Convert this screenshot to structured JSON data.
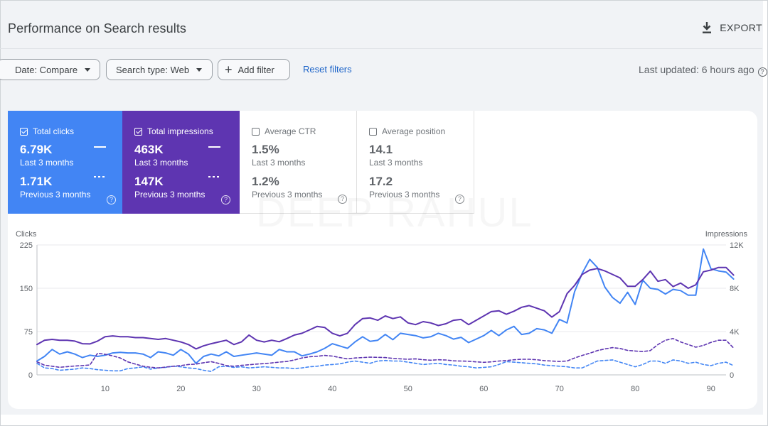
{
  "header": {
    "title": "Performance on Search results",
    "export_label": "EXPORT"
  },
  "filters": {
    "date": "Date: Compare",
    "search_type": "Search type: Web",
    "add_filter": "Add filter",
    "reset": "Reset filters",
    "last_updated": "Last updated: 6 hours ago"
  },
  "metrics": [
    {
      "label": "Total clicks",
      "checked": true,
      "value": "6.79K",
      "period": "Last 3 months",
      "prev_value": "1.71K",
      "prev_period": "Previous 3 months",
      "color": "#4285f4"
    },
    {
      "label": "Total impressions",
      "checked": true,
      "value": "463K",
      "period": "Last 3 months",
      "prev_value": "147K",
      "prev_period": "Previous 3 months",
      "color": "#5e35b1"
    },
    {
      "label": "Average CTR",
      "checked": false,
      "value": "1.5%",
      "period": "Last 3 months",
      "prev_value": "1.2%",
      "prev_period": "Previous 3 months",
      "color": "#70757a"
    },
    {
      "label": "Average position",
      "checked": false,
      "value": "14.1",
      "period": "Last 3 months",
      "prev_value": "17.2",
      "prev_period": "Previous 3 months",
      "color": "#70757a"
    }
  ],
  "watermark": "DEEP RAHUL",
  "chart_data": {
    "type": "line",
    "left_axis": {
      "label": "Clicks",
      "ticks": [
        "0",
        "75",
        "150",
        "225"
      ],
      "range": [
        0,
        225
      ]
    },
    "right_axis": {
      "label": "Impressions",
      "ticks": [
        "0",
        "4K",
        "8K",
        "12K"
      ],
      "range": [
        0,
        12000
      ]
    },
    "x_ticks": [
      10,
      20,
      30,
      40,
      50,
      60,
      70,
      80,
      90
    ],
    "x_range": [
      1,
      92
    ],
    "grid": true,
    "series": [
      {
        "metric": "Total clicks",
        "period": "Last 3 months",
        "axis": "left",
        "color": "#4285f4",
        "style": "solid",
        "values": [
          24,
          32,
          44,
          36,
          40,
          36,
          30,
          34,
          32,
          34,
          38,
          39,
          38,
          38,
          36,
          30,
          40,
          38,
          34,
          44,
          36,
          20,
          32,
          36,
          33,
          40,
          32,
          34,
          36,
          38,
          36,
          34,
          44,
          40,
          40,
          33,
          36,
          40,
          46,
          54,
          50,
          46,
          57,
          66,
          58,
          60,
          70,
          61,
          72,
          70,
          68,
          64,
          66,
          72,
          68,
          62,
          65,
          56,
          62,
          68,
          77,
          68,
          78,
          84,
          70,
          72,
          80,
          78,
          72,
          96,
          90,
          144,
          176,
          200,
          186,
          152,
          134,
          124,
          143,
          122,
          164,
          150,
          148,
          140,
          148,
          146,
          138,
          138,
          218,
          184,
          180,
          178,
          166
        ]
      },
      {
        "metric": "Total impressions",
        "period": "Last 3 months",
        "axis": "right",
        "color": "#5e35b1",
        "style": "solid",
        "values": [
          2800,
          3200,
          3280,
          3200,
          3200,
          3120,
          2880,
          2860,
          3120,
          3520,
          3600,
          3520,
          3520,
          3440,
          3440,
          3360,
          3280,
          3360,
          3200,
          3040,
          2800,
          2400,
          2680,
          2880,
          3040,
          3200,
          2800,
          3040,
          3680,
          3200,
          3040,
          3200,
          3060,
          3360,
          3680,
          3840,
          4160,
          4480,
          4380,
          3840,
          3600,
          3840,
          4640,
          5200,
          5260,
          5040,
          5440,
          5200,
          5360,
          4800,
          4640,
          4920,
          4800,
          4560,
          4720,
          5040,
          5120,
          4640,
          5040,
          5440,
          5840,
          5920,
          5600,
          5880,
          6240,
          6400,
          6160,
          5920,
          5340,
          5840,
          7500,
          8260,
          9280,
          9680,
          9820,
          9600,
          9280,
          8960,
          8180,
          8180,
          8800,
          9580,
          8640,
          8800,
          8160,
          8480,
          8000,
          8320,
          9520,
          9680,
          9920,
          9920,
          9220
        ]
      },
      {
        "metric": "Total clicks",
        "period": "Previous 3 months",
        "axis": "left",
        "color": "#4285f4",
        "style": "dashed",
        "values": [
          20,
          12,
          11,
          8,
          9,
          10,
          12,
          11,
          9,
          8,
          7,
          7,
          11,
          12,
          14,
          10,
          12,
          13,
          15,
          14,
          12,
          11,
          8,
          6,
          14,
          15,
          13,
          14,
          12,
          13,
          14,
          13,
          12,
          12,
          11,
          12,
          14,
          15,
          17,
          18,
          19,
          22,
          24,
          22,
          20,
          24,
          25,
          24,
          24,
          22,
          20,
          18,
          19,
          20,
          18,
          17,
          15,
          14,
          12,
          13,
          14,
          18,
          23,
          22,
          21,
          20,
          19,
          17,
          16,
          15,
          14,
          12,
          12,
          18,
          24,
          25,
          26,
          22,
          18,
          14,
          18,
          24,
          24,
          20,
          26,
          24,
          20,
          22,
          18,
          16,
          20,
          22,
          16
        ]
      },
      {
        "metric": "Total impressions",
        "period": "Previous 3 months",
        "axis": "right",
        "color": "#5e35b1",
        "style": "dashed",
        "values": [
          1200,
          900,
          800,
          700,
          760,
          820,
          860,
          920,
          2000,
          1900,
          1760,
          1560,
          1200,
          1000,
          800,
          700,
          640,
          720,
          800,
          860,
          960,
          1000,
          1120,
          1220,
          1060,
          860,
          800,
          880,
          940,
          1000,
          1040,
          1100,
          1180,
          1240,
          1380,
          1560,
          1680,
          1720,
          1800,
          1740,
          1600,
          1480,
          1560,
          1600,
          1640,
          1620,
          1600,
          1520,
          1480,
          1440,
          1480,
          1400,
          1360,
          1400,
          1380,
          1300,
          1280,
          1260,
          1200,
          1160,
          1200,
          1280,
          1320,
          1400,
          1440,
          1440,
          1400,
          1320,
          1280,
          1240,
          1280,
          1560,
          1800,
          2000,
          2240,
          2400,
          2520,
          2440,
          2260,
          2200,
          2160,
          2240,
          2800,
          3200,
          3360,
          3040,
          2800,
          2560,
          2720,
          3000,
          3200,
          3200,
          2480
        ]
      }
    ]
  }
}
